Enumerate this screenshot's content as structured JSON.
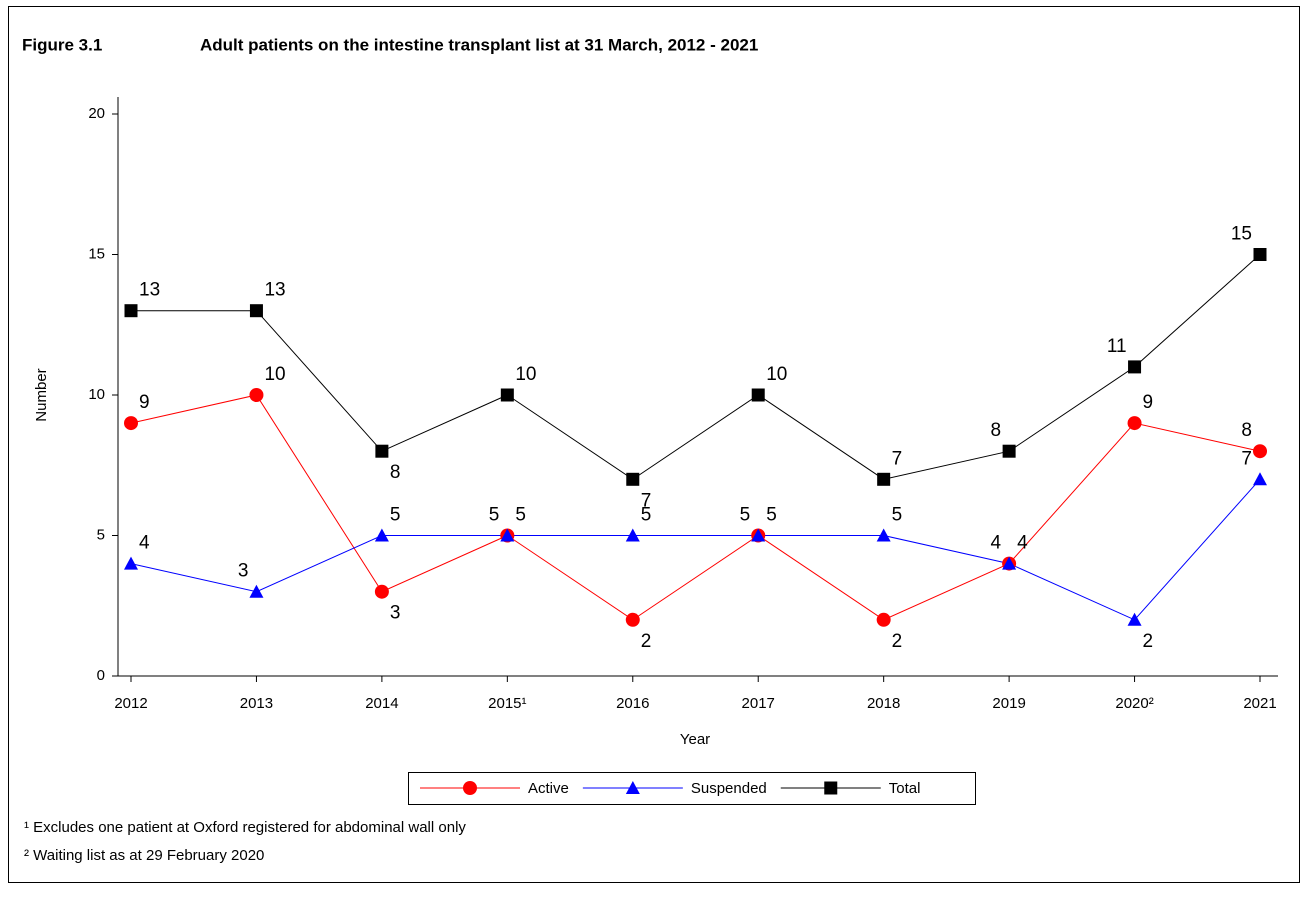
{
  "chart_data": {
    "type": "line",
    "figure_label": "Figure 3.1",
    "title": "Adult patients on the intestine transplant list at 31 March, 2012 - 2021",
    "x_label": "Year",
    "y_label": "Number",
    "categories": [
      "2012",
      "2013",
      "2014",
      "2015¹",
      "2016",
      "2017",
      "2018",
      "2019",
      "2020²",
      "2021"
    ],
    "series": [
      {
        "name": "Active",
        "color": "#ff0000",
        "marker": "circle",
        "values": [
          9,
          10,
          3,
          5,
          2,
          5,
          2,
          4,
          9,
          8
        ]
      },
      {
        "name": "Suspended",
        "color": "#0000ff",
        "marker": "triangle",
        "values": [
          4,
          3,
          5,
          5,
          5,
          5,
          5,
          4,
          2,
          7
        ]
      },
      {
        "name": "Total",
        "color": "#000000",
        "marker": "square",
        "values": [
          13,
          13,
          8,
          10,
          7,
          10,
          7,
          8,
          11,
          15
        ]
      }
    ],
    "ylim": [
      0,
      20
    ],
    "yticks": [
      0,
      5,
      10,
      15,
      20
    ],
    "footnotes": [
      "¹ Excludes one patient at Oxford registered for abdominal wall only",
      "² Waiting list as at 29 February 2020"
    ]
  }
}
